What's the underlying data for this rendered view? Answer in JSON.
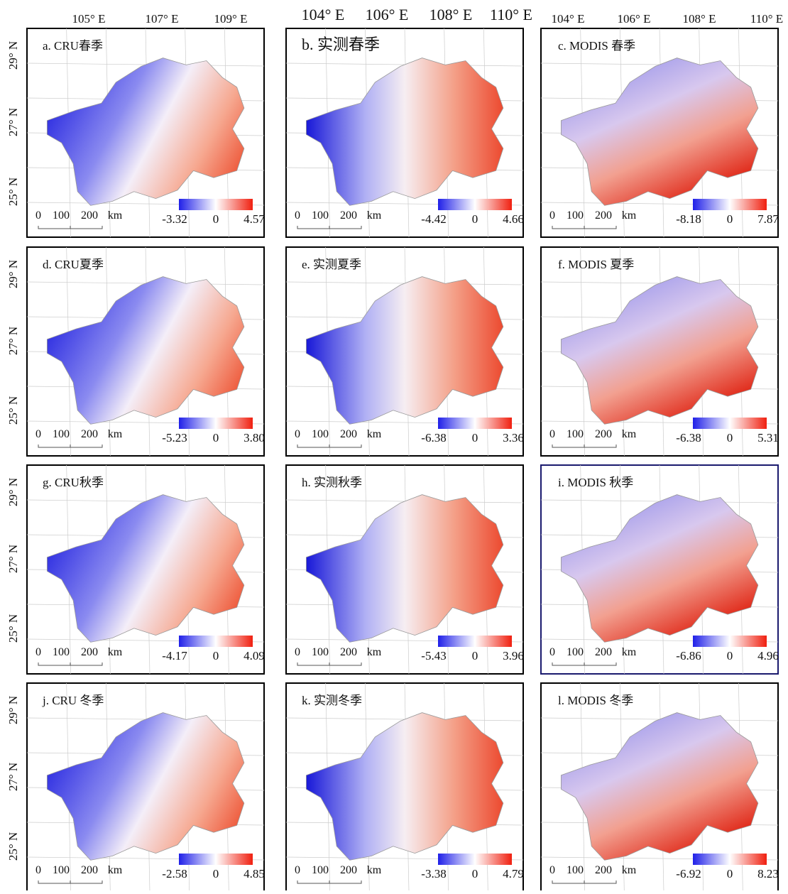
{
  "top_labels": [
    [
      "105° E",
      "107° E",
      "109° E"
    ],
    [
      "104° E",
      "106° E",
      "108° E",
      "110° E"
    ],
    [
      "104° E",
      "106° E",
      "108° E",
      "110° E"
    ]
  ],
  "left_labels": [
    "29° N",
    "27° N",
    "25° N"
  ],
  "panels": [
    {
      "title": "a. CRU春季",
      "scale": [
        "0",
        "100",
        "200",
        "km"
      ],
      "legend": [
        "-3.32",
        "0",
        "4.57"
      ]
    },
    {
      "title": "b. 实测春季",
      "scale": [
        "0",
        "100",
        "200",
        "km"
      ],
      "legend": [
        "-4.42",
        "0",
        "4.66"
      ]
    },
    {
      "title": "c. MODIS 春季",
      "scale": [
        "0",
        "100",
        "200",
        "km"
      ],
      "legend": [
        "-8.18",
        "0",
        "7.87"
      ]
    },
    {
      "title": "d. CRU夏季",
      "scale": [
        "0",
        "100",
        "200",
        "km"
      ],
      "legend": [
        "-5.23",
        "0",
        "3.80"
      ]
    },
    {
      "title": "e. 实测夏季",
      "scale": [
        "0",
        "100",
        "200",
        "km"
      ],
      "legend": [
        "-6.38",
        "0",
        "3.36"
      ]
    },
    {
      "title": "f. MODIS 夏季",
      "scale": [
        "0",
        "100",
        "200",
        "km"
      ],
      "legend": [
        "-6.38",
        "0",
        "5.31"
      ]
    },
    {
      "title": "g. CRU秋季",
      "scale": [
        "0",
        "100",
        "200",
        "km"
      ],
      "legend": [
        "-4.17",
        "0",
        "4.09"
      ]
    },
    {
      "title": "h. 实测秋季",
      "scale": [
        "0",
        "100",
        "200",
        "km"
      ],
      "legend": [
        "-5.43",
        "0",
        "3.96"
      ]
    },
    {
      "title": "i. MODIS 秋季",
      "scale": [
        "0",
        "100",
        "200",
        "km"
      ],
      "legend": [
        "-6.86",
        "0",
        "4.96"
      ]
    },
    {
      "title": "j. CRU 冬季",
      "scale": [
        "0",
        "100",
        "200",
        "km"
      ],
      "legend": [
        "-2.58",
        "0",
        "4.85"
      ]
    },
    {
      "title": "k. 实测冬季",
      "scale": [
        "0",
        "100",
        "200",
        "km"
      ],
      "legend": [
        "-3.38",
        "0",
        "4.79"
      ]
    },
    {
      "title": "l. MODIS 冬季",
      "scale": [
        "0",
        "100",
        "200",
        "km"
      ],
      "legend": [
        "-6.92",
        "0",
        "8.23"
      ]
    }
  ]
}
